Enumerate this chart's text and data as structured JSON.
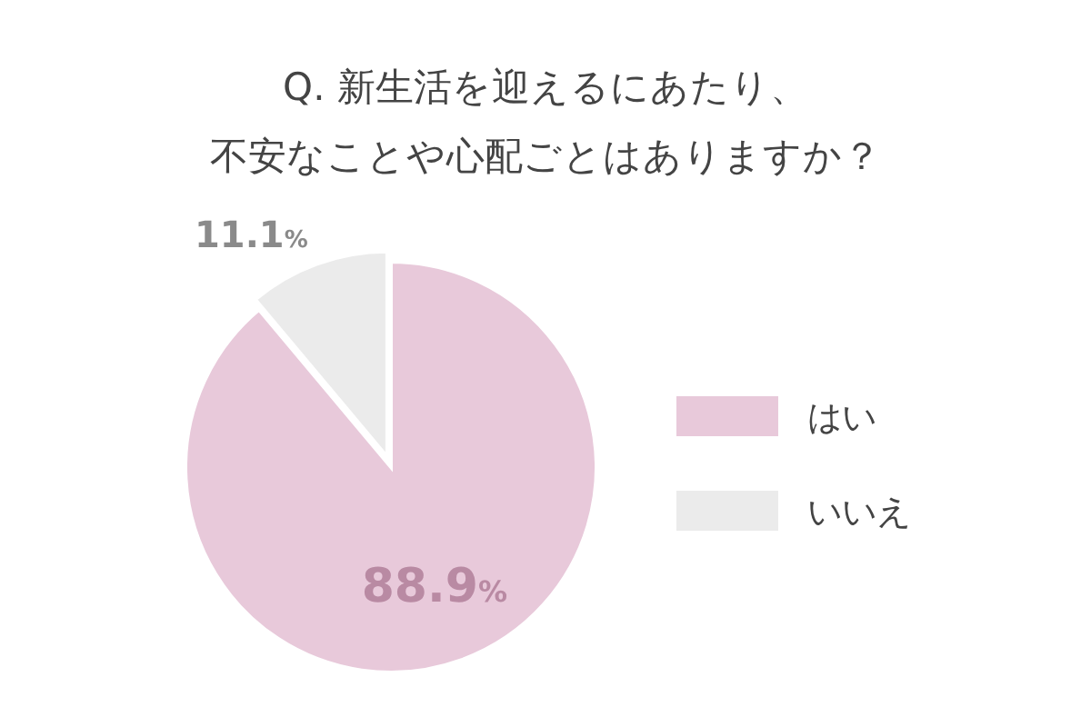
{
  "chart_data": {
    "type": "pie",
    "title": "Q. 新生活を迎えるにあたり、",
    "subtitle": "不安なことや心配ごとはありますか？",
    "categories": [
      "はい",
      "いいえ"
    ],
    "values": [
      88.9,
      11.1
    ],
    "value_labels": [
      "88.9%",
      "11.1%"
    ],
    "colors": [
      "#e8c9da",
      "#ebebeb"
    ],
    "legend": "right"
  }
}
